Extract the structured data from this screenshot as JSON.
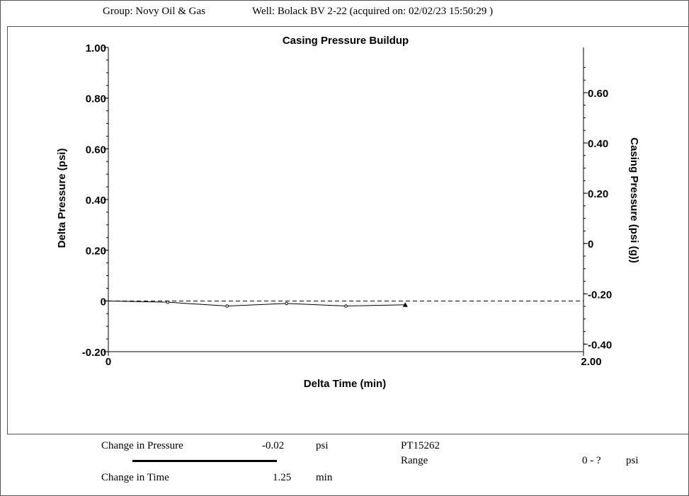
{
  "header": {
    "group": "Group: Novy Oil & Gas",
    "well": "Well: Bolack BV 2-22 (acquired on: 02/02/23 15:50:29 )"
  },
  "chart_data": {
    "type": "line",
    "title": "Casing Pressure Buildup",
    "xlabel": "Delta Time (min)",
    "ylabel": "Delta Pressure (psi)",
    "y2label": "Casing Pressure (psi (g))",
    "xlim": [
      0,
      2.0
    ],
    "ylim": [
      -0.2,
      1.0
    ],
    "y2lim": [
      -0.43,
      0.78
    ],
    "x_ticks": [
      "0",
      "2.00"
    ],
    "y_ticks": [
      {
        "v": 1.0,
        "label": "1.00"
      },
      {
        "v": 0.8,
        "label": "0.80"
      },
      {
        "v": 0.6,
        "label": "0.60"
      },
      {
        "v": 0.4,
        "label": "0.40"
      },
      {
        "v": 0.2,
        "label": "0.20"
      },
      {
        "v": 0.0,
        "label": "0"
      },
      {
        "v": -0.2,
        "label": "-0.20"
      }
    ],
    "y2_ticks": [
      {
        "v": 0.6,
        "label": "0.60"
      },
      {
        "v": 0.4,
        "label": "0.40"
      },
      {
        "v": 0.2,
        "label": "0.20"
      },
      {
        "v": 0.0,
        "label": "0"
      },
      {
        "v": -0.2,
        "label": "-0.20"
      },
      {
        "v": -0.4,
        "label": "-0.40"
      }
    ],
    "reference_line": {
      "y": 0,
      "style": "dashed"
    },
    "series": [
      {
        "x": [
          0,
          0.25,
          0.5,
          0.75,
          1.0,
          1.25
        ],
        "y": [
          0,
          -0.005,
          -0.02,
          -0.01,
          -0.02,
          -0.015
        ]
      }
    ],
    "grid": false
  },
  "footer": {
    "change_pressure_label": "Change in Pressure",
    "change_pressure_value": "-0.02",
    "change_pressure_unit": "psi",
    "change_time_label": "Change in Time",
    "change_time_value": "1.25",
    "change_time_unit": "min",
    "gauge_id": "PT15262",
    "range_label": "Range",
    "range_value": "0 - ?",
    "range_unit": "psi"
  }
}
